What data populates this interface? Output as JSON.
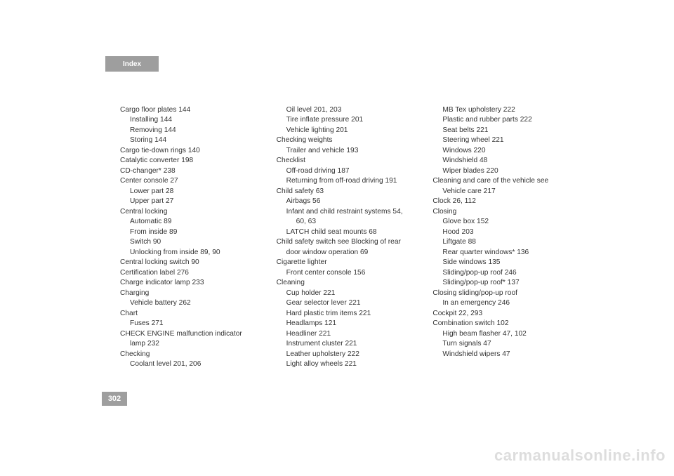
{
  "header": {
    "title": "Index"
  },
  "pageNumber": "302",
  "watermark": "carmanualsonline.info",
  "columns": [
    [
      {
        "t": "Cargo floor plates 144",
        "lvl": 0
      },
      {
        "t": "Installing 144",
        "lvl": 1
      },
      {
        "t": "Removing 144",
        "lvl": 1
      },
      {
        "t": "Storing 144",
        "lvl": 1
      },
      {
        "t": "Cargo tie-down rings 140",
        "lvl": 0
      },
      {
        "t": "Catalytic converter 198",
        "lvl": 0
      },
      {
        "t": "CD-changer* 238",
        "lvl": 0
      },
      {
        "t": "Center console 27",
        "lvl": 0
      },
      {
        "t": "Lower part 28",
        "lvl": 1
      },
      {
        "t": "Upper part 27",
        "lvl": 1
      },
      {
        "t": "Central locking",
        "lvl": 0
      },
      {
        "t": "Automatic 89",
        "lvl": 1
      },
      {
        "t": "From inside 89",
        "lvl": 1
      },
      {
        "t": "Switch 90",
        "lvl": 1
      },
      {
        "t": "Unlocking from inside 89, 90",
        "lvl": 1
      },
      {
        "t": "Central locking switch 90",
        "lvl": 0
      },
      {
        "t": "Certification label 276",
        "lvl": 0
      },
      {
        "t": "Charge indicator lamp 233",
        "lvl": 0
      },
      {
        "t": "Charging",
        "lvl": 0
      },
      {
        "t": "Vehicle battery 262",
        "lvl": 1
      },
      {
        "t": "Chart",
        "lvl": 0
      },
      {
        "t": "Fuses 271",
        "lvl": 1
      },
      {
        "t": "CHECK ENGINE malfunction indicator",
        "lvl": 0
      },
      {
        "t": "lamp 232",
        "lvl": 1,
        "cont": true
      },
      {
        "t": "Checking",
        "lvl": 0
      },
      {
        "t": "Coolant level 201, 206",
        "lvl": 1
      }
    ],
    [
      {
        "t": "Oil level 201, 203",
        "lvl": 1
      },
      {
        "t": "Tire inflate pressure 201",
        "lvl": 1
      },
      {
        "t": "Vehicle lighting 201",
        "lvl": 1
      },
      {
        "t": "Checking weights",
        "lvl": 0
      },
      {
        "t": "Trailer and vehicle 193",
        "lvl": 1
      },
      {
        "t": "Checklist",
        "lvl": 0
      },
      {
        "t": "Off-road driving 187",
        "lvl": 1
      },
      {
        "t": "Returning from off-road driving 191",
        "lvl": 1
      },
      {
        "t": "Child safety 63",
        "lvl": 0
      },
      {
        "t": "Airbags 56",
        "lvl": 1
      },
      {
        "t": "Infant and child restraint systems 54,",
        "lvl": 1
      },
      {
        "t": "60, 63",
        "lvl": 2,
        "cont": true
      },
      {
        "t": "LATCH child seat mounts 68",
        "lvl": 1
      },
      {
        "t": "Child safety switch see Blocking of rear",
        "lvl": 0
      },
      {
        "t": "door window operation 69",
        "lvl": 1,
        "cont": true
      },
      {
        "t": "Cigarette lighter",
        "lvl": 0
      },
      {
        "t": "Front center console 156",
        "lvl": 1
      },
      {
        "t": "Cleaning",
        "lvl": 0
      },
      {
        "t": "Cup holder 221",
        "lvl": 1
      },
      {
        "t": "Gear selector lever 221",
        "lvl": 1
      },
      {
        "t": "Hard plastic trim items 221",
        "lvl": 1
      },
      {
        "t": "Headlamps 121",
        "lvl": 1
      },
      {
        "t": "Headliner 221",
        "lvl": 1
      },
      {
        "t": "Instrument cluster 221",
        "lvl": 1
      },
      {
        "t": "Leather upholstery 222",
        "lvl": 1
      },
      {
        "t": "Light alloy wheels 221",
        "lvl": 1
      }
    ],
    [
      {
        "t": "MB Tex upholstery 222",
        "lvl": 1
      },
      {
        "t": "Plastic and rubber parts 222",
        "lvl": 1
      },
      {
        "t": "Seat belts 221",
        "lvl": 1
      },
      {
        "t": "Steering wheel 221",
        "lvl": 1
      },
      {
        "t": "Windows 220",
        "lvl": 1
      },
      {
        "t": "Windshield 48",
        "lvl": 1
      },
      {
        "t": "Wiper blades 220",
        "lvl": 1
      },
      {
        "t": "Cleaning and care of the vehicle see",
        "lvl": 0
      },
      {
        "t": "Vehicle care 217",
        "lvl": 1,
        "cont": true
      },
      {
        "t": "Clock 26, 112",
        "lvl": 0
      },
      {
        "t": "Closing",
        "lvl": 0
      },
      {
        "t": "Glove box 152",
        "lvl": 1
      },
      {
        "t": "Hood 203",
        "lvl": 1
      },
      {
        "t": "Liftgate 88",
        "lvl": 1
      },
      {
        "t": "Rear quarter windows* 136",
        "lvl": 1
      },
      {
        "t": "Side windows 135",
        "lvl": 1
      },
      {
        "t": "Sliding/pop-up roof 246",
        "lvl": 1
      },
      {
        "t": "Sliding/pop-up roof* 137",
        "lvl": 1
      },
      {
        "t": "Closing sliding/pop-up roof",
        "lvl": 0
      },
      {
        "t": "In an emergency 246",
        "lvl": 1
      },
      {
        "t": "Cockpit 22, 293",
        "lvl": 0
      },
      {
        "t": "Combination switch 102",
        "lvl": 0
      },
      {
        "t": "High beam flasher 47, 102",
        "lvl": 1
      },
      {
        "t": "Turn signals 47",
        "lvl": 1
      },
      {
        "t": "Windshield wipers 47",
        "lvl": 1
      }
    ]
  ]
}
